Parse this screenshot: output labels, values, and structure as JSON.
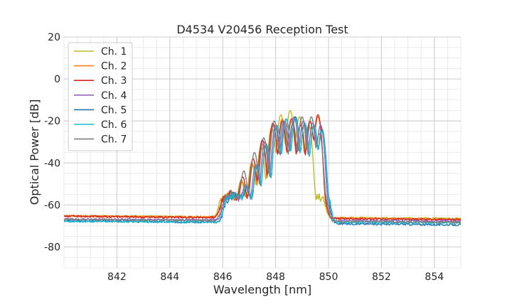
{
  "chart_data": {
    "type": "line",
    "title": "D4534 V20456 Reception Test",
    "xlabel": "Wavelength [nm]",
    "ylabel": "Optical Power [dB]",
    "xlim": [
      840.0,
      855.0
    ],
    "ylim": [
      -90,
      20
    ],
    "x_ticks": [
      842,
      844,
      846,
      848,
      850,
      852,
      854
    ],
    "y_ticks": [
      20,
      0,
      -20,
      -40,
      -60,
      -80
    ],
    "x_minor_step": 0.5,
    "y_minor_step": 5,
    "grid": true,
    "legend_position": "top-left",
    "series": [
      {
        "name": "Ch. 1",
        "color": "#bcbd22",
        "shift": -0.1,
        "noise_level": -65.2,
        "noise_end": -66.5,
        "peaks": [
          [
            846.35,
            -58
          ],
          [
            846.8,
            -49
          ],
          [
            847.2,
            -40
          ],
          [
            847.55,
            -32
          ],
          [
            847.95,
            -23
          ],
          [
            848.3,
            -17
          ],
          [
            848.65,
            -15
          ],
          [
            849.0,
            -18
          ],
          [
            849.35,
            -22
          ]
        ]
      },
      {
        "name": "Ch. 2",
        "color": "#ff7f0e",
        "shift": -0.05,
        "noise_level": -65.3,
        "noise_end": -66.8,
        "peaks": [
          [
            846.35,
            -59
          ],
          [
            846.8,
            -50
          ],
          [
            847.2,
            -41
          ],
          [
            847.55,
            -31
          ],
          [
            847.95,
            -22
          ],
          [
            848.3,
            -19
          ],
          [
            848.65,
            -20
          ],
          [
            849.0,
            -21
          ],
          [
            849.35,
            -20
          ],
          [
            849.65,
            -18
          ]
        ]
      },
      {
        "name": "Ch. 3",
        "color": "#d62728",
        "shift": -0.05,
        "noise_level": -65.4,
        "noise_end": -67.0,
        "peaks": [
          [
            846.35,
            -58
          ],
          [
            846.8,
            -47
          ],
          [
            847.2,
            -38
          ],
          [
            847.55,
            -29
          ],
          [
            847.95,
            -21
          ],
          [
            848.3,
            -20
          ],
          [
            848.65,
            -19
          ],
          [
            849.0,
            -22
          ],
          [
            849.35,
            -20
          ],
          [
            849.65,
            -17
          ]
        ]
      },
      {
        "name": "Ch. 4",
        "color": "#9467bd",
        "shift": 0.05,
        "noise_level": -66.8,
        "noise_end": -67.7,
        "peaks": [
          [
            846.35,
            -60
          ],
          [
            846.8,
            -52
          ],
          [
            847.2,
            -41
          ],
          [
            847.55,
            -30
          ],
          [
            847.95,
            -22
          ],
          [
            848.3,
            -20
          ],
          [
            848.65,
            -18
          ],
          [
            849.0,
            -20
          ],
          [
            849.35,
            -21
          ],
          [
            849.65,
            -22
          ]
        ]
      },
      {
        "name": "Ch. 5",
        "color": "#1f77b4",
        "shift": 0.1,
        "noise_level": -67.6,
        "noise_end": -69.5,
        "peaks": [
          [
            846.35,
            -60
          ],
          [
            846.8,
            -53
          ],
          [
            847.2,
            -42
          ],
          [
            847.55,
            -31
          ],
          [
            847.95,
            -22
          ],
          [
            848.3,
            -19
          ],
          [
            848.65,
            -18
          ],
          [
            849.0,
            -21
          ],
          [
            849.35,
            -22
          ],
          [
            849.65,
            -24
          ]
        ]
      },
      {
        "name": "Ch. 6",
        "color": "#17becf",
        "shift": 0.1,
        "noise_level": -67.8,
        "noise_end": -68.5,
        "peaks": [
          [
            846.35,
            -60
          ],
          [
            846.8,
            -52
          ],
          [
            847.2,
            -41
          ],
          [
            847.55,
            -31
          ],
          [
            847.95,
            -22
          ],
          [
            848.3,
            -19
          ],
          [
            848.65,
            -19
          ],
          [
            849.0,
            -21
          ],
          [
            849.35,
            -22
          ],
          [
            849.65,
            -25
          ]
        ]
      },
      {
        "name": "Ch. 7",
        "color": "#7f7f7f",
        "shift": 0.0,
        "noise_level": -66.9,
        "noise_end": -68.3,
        "peaks": [
          [
            846.35,
            -58
          ],
          [
            846.8,
            -44
          ],
          [
            847.2,
            -35
          ],
          [
            847.55,
            -28
          ],
          [
            847.95,
            -20
          ],
          [
            848.3,
            -20
          ],
          [
            848.65,
            -21
          ],
          [
            849.0,
            -18
          ],
          [
            849.35,
            -18
          ],
          [
            849.65,
            -26
          ]
        ]
      }
    ]
  }
}
